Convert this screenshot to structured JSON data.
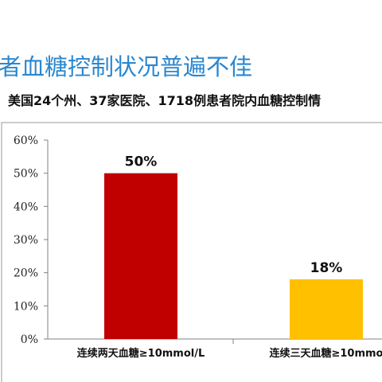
{
  "slide": {
    "title": "者血糖控制状况普遍不佳",
    "subtitle": "美国24个州、37家医院、1718例患者院内血糖控制情"
  },
  "colors": {
    "title": "#2a87d0",
    "frame": "#9a9a9a",
    "axis": "#808080",
    "bar_1": "#c00000",
    "bar_2": "#ffc000"
  },
  "chart_data": {
    "type": "bar",
    "categories": [
      "连续两天血糖≥10mmol/L",
      "连续三天血糖≥10mmo"
    ],
    "values": [
      50,
      18
    ],
    "data_labels": [
      "50%",
      "18%"
    ],
    "title": "",
    "xlabel": "",
    "ylabel": "",
    "ylim": [
      0,
      60
    ],
    "yticks": [
      "0%",
      "10%",
      "20%",
      "30%",
      "40%",
      "50%",
      "60%"
    ],
    "grid": false,
    "legend": "none"
  }
}
